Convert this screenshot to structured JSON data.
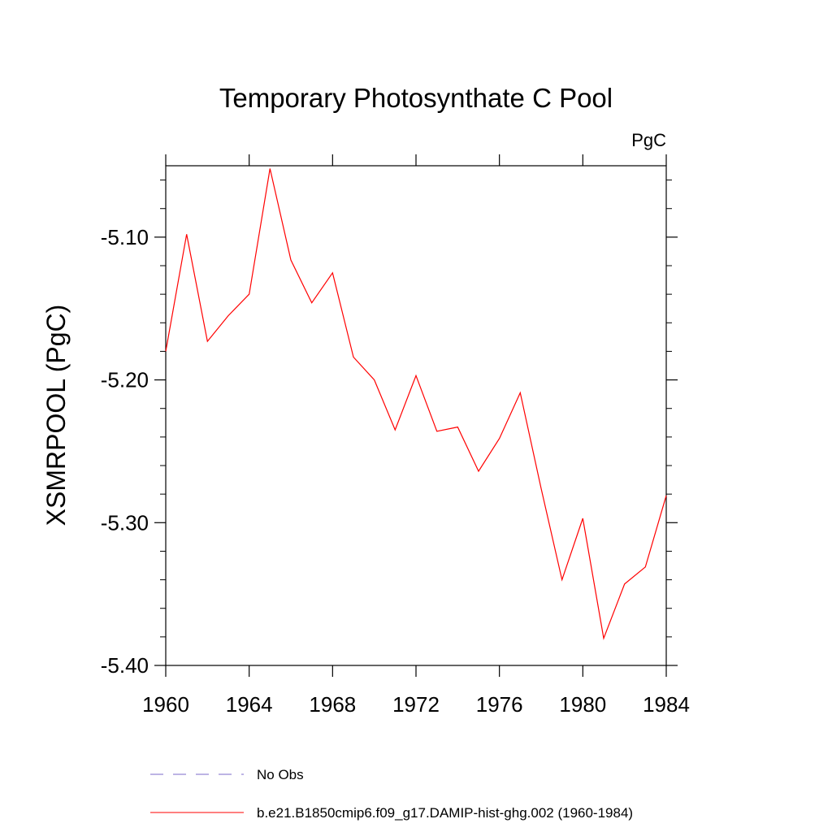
{
  "chart_data": {
    "type": "line",
    "title": "Temporary Photosynthate C Pool",
    "units": "PgC",
    "ylabel": "XSMRPOOL  (PgC)",
    "xlabel": "",
    "xlim": [
      1960,
      1984
    ],
    "ylim": [
      -5.4,
      -5.05
    ],
    "x_ticks": [
      1960,
      1964,
      1968,
      1972,
      1976,
      1980,
      1984
    ],
    "x_tick_labels": [
      "1960",
      "1964",
      "1968",
      "1972",
      "1976",
      "1980",
      "1984"
    ],
    "y_ticks": [
      -5.4,
      -5.3,
      -5.2,
      -5.1
    ],
    "y_tick_labels": [
      "-5.40",
      "-5.30",
      "-5.20",
      "-5.10"
    ],
    "grid": false,
    "legend_placement": "bottom",
    "series": [
      {
        "name": "No Obs",
        "color": "#7b68c8",
        "style": "dashed",
        "x": [],
        "values": []
      },
      {
        "name": "b.e21.B1850cmip6.f09_g17.DAMIP-hist-ghg.002 (1960-1984)",
        "color": "#ff0000",
        "style": "solid",
        "x": [
          1960,
          1961,
          1962,
          1963,
          1964,
          1965,
          1966,
          1967,
          1968,
          1969,
          1970,
          1971,
          1972,
          1973,
          1974,
          1975,
          1976,
          1977,
          1978,
          1979,
          1980,
          1981,
          1982,
          1983,
          1984
        ],
        "values": [
          -5.18,
          -5.098,
          -5.173,
          -5.155,
          -5.14,
          -5.052,
          -5.116,
          -5.146,
          -5.125,
          -5.184,
          -5.2,
          -5.235,
          -5.197,
          -5.236,
          -5.233,
          -5.264,
          -5.241,
          -5.209,
          -5.276,
          -5.34,
          -5.297,
          -5.381,
          -5.343,
          -5.331,
          -5.281
        ]
      }
    ]
  }
}
